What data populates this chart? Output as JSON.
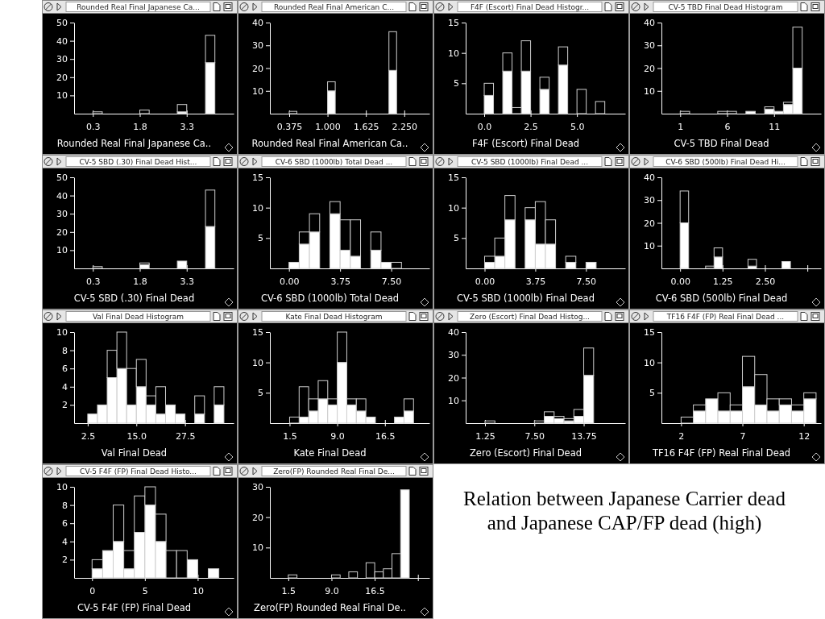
{
  "chart_data": [
    {
      "type": "bar",
      "stacked": true,
      "title": "Rounded Real Final Japanese Ca...",
      "xlabel": "Rounded Real Final Japanese Ca..",
      "x": [
        0.45,
        0.75,
        1.05,
        1.35,
        1.65,
        1.95,
        2.25,
        2.55,
        2.85,
        3.15,
        3.45,
        3.75,
        4.05
      ],
      "xlim": [
        -0.3,
        4.8
      ],
      "xticks": [
        0.3,
        1.8,
        3.3
      ],
      "ylim": [
        0,
        50
      ],
      "yticks": [
        10,
        20,
        30,
        40,
        50
      ],
      "series": [
        {
          "color": "#ffffff",
          "values": [
            0,
            0,
            0,
            0,
            0,
            0,
            0,
            0,
            0,
            1,
            0,
            0,
            28
          ]
        },
        {
          "color": "#000000",
          "values": [
            1,
            0,
            0,
            0,
            0,
            2,
            0,
            0,
            0,
            4,
            0,
            0,
            15
          ]
        }
      ]
    },
    {
      "type": "bar",
      "stacked": true,
      "title": "Rounded Real Final American C...",
      "xlabel": "Rounded Real Final American Ca..",
      "x": [
        0.4375,
        0.5625,
        0.6875,
        0.8125,
        0.9375,
        1.0625,
        1.1875,
        1.3125,
        1.4375,
        1.5625,
        1.6875,
        1.8125,
        1.9375,
        2.0625
      ],
      "xlim": [
        0.06,
        2.66
      ],
      "xticks": [
        0.375,
        {
          "value": 1,
          "label": "1.000"
        },
        1.625,
        {
          "value": 2.25,
          "label": "2.250"
        }
      ],
      "ylim": [
        0,
        40
      ],
      "yticks": [
        10,
        20,
        30,
        40
      ],
      "series": [
        {
          "color": "#ffffff",
          "values": [
            0,
            0,
            0,
            0,
            0,
            10,
            0,
            0,
            0,
            0,
            0,
            0,
            0,
            19
          ]
        },
        {
          "color": "#000000",
          "values": [
            1,
            0,
            0,
            0,
            0,
            4,
            0,
            0,
            0,
            0,
            0,
            0,
            0,
            17
          ]
        }
      ]
    },
    {
      "type": "bar",
      "stacked": true,
      "title": "F4F (Escort) Final Dead Histogr...",
      "xlabel": "F4F (Escort) Final Dead",
      "x": [
        0.25,
        0.75,
        1.25,
        1.75,
        2.25,
        2.75,
        3.25,
        3.75,
        4.25,
        4.75,
        5.25,
        5.75,
        6.25
      ],
      "xlim": [
        -1,
        7.6
      ],
      "xticks": [
        {
          "value": 0,
          "label": "0.0"
        },
        2.5,
        {
          "value": 5,
          "label": "5.0"
        }
      ],
      "ylim": [
        0,
        15
      ],
      "yticks": [
        5,
        10,
        15
      ],
      "series": [
        {
          "color": "#ffffff",
          "values": [
            3,
            0,
            7,
            0,
            7,
            0,
            4,
            0,
            8,
            0,
            0,
            0,
            0
          ]
        },
        {
          "color": "#000000",
          "values": [
            2,
            0,
            3,
            1,
            5,
            0,
            2,
            0,
            3,
            0,
            4,
            0,
            2
          ]
        }
      ]
    },
    {
      "type": "bar",
      "stacked": true,
      "title": "CV-5 TBD Final Dead Histogram",
      "xlabel": "CV-5 TBD Final Dead",
      "x": [
        1.5,
        2.5,
        3.5,
        4.5,
        5.5,
        6.5,
        7.5,
        8.5,
        9.5,
        10.5,
        11.5,
        12.5,
        13.5
      ],
      "xlim": [
        -1,
        16
      ],
      "xticks": [
        1,
        6,
        11
      ],
      "ylim": [
        0,
        40
      ],
      "yticks": [
        10,
        20,
        30,
        40
      ],
      "series": [
        {
          "color": "#ffffff",
          "values": [
            0,
            0,
            0,
            0,
            0,
            0,
            0,
            1,
            0,
            2,
            1,
            4,
            20
          ]
        },
        {
          "color": "#000000",
          "values": [
            1,
            0,
            0,
            0,
            1,
            1,
            0,
            0,
            0,
            1,
            0,
            1,
            18
          ]
        }
      ]
    },
    {
      "type": "bar",
      "stacked": true,
      "title": "CV-5 SBD (.30) Final Dead Hist...",
      "xlabel": "CV-5 SBD (.30) Final Dead",
      "x": [
        0.45,
        0.75,
        1.05,
        1.35,
        1.65,
        1.95,
        2.25,
        2.55,
        2.85,
        3.15,
        3.45,
        3.75,
        4.05
      ],
      "xlim": [
        -0.3,
        4.8
      ],
      "xticks": [
        0.3,
        1.8,
        3.3
      ],
      "ylim": [
        0,
        50
      ],
      "yticks": [
        10,
        20,
        30,
        40,
        50
      ],
      "series": [
        {
          "color": "#ffffff",
          "values": [
            0,
            0,
            0,
            0,
            0,
            2,
            0,
            0,
            0,
            4,
            0,
            0,
            23
          ]
        },
        {
          "color": "#000000",
          "values": [
            1,
            0,
            0,
            0,
            0,
            1,
            0,
            0,
            0,
            0,
            0,
            0,
            20
          ]
        }
      ]
    },
    {
      "type": "bar",
      "stacked": true,
      "title": "CV-6 SBD (1000lb) Total Dead ...",
      "xlabel": "CV-6 SBD (1000lb) Total Dead",
      "x": [
        0.375,
        1.125,
        1.875,
        2.625,
        3.375,
        4.125,
        4.875,
        5.625,
        6.375,
        7.125,
        7.875
      ],
      "xlim": [
        -1.4,
        10.3
      ],
      "xticks": [
        {
          "value": 0,
          "label": "0.00"
        },
        3.75,
        {
          "value": 7.5,
          "label": "7.50"
        }
      ],
      "ylim": [
        0,
        15
      ],
      "yticks": [
        5,
        10,
        15
      ],
      "series": [
        {
          "color": "#ffffff",
          "values": [
            1,
            4,
            6,
            0,
            9,
            3,
            2,
            0,
            3,
            1,
            0
          ]
        },
        {
          "color": "#000000",
          "values": [
            0,
            2,
            3,
            0,
            2,
            5,
            6,
            0,
            3,
            0,
            1
          ]
        }
      ]
    },
    {
      "type": "bar",
      "stacked": true,
      "title": "CV-5 SBD (1000lb) Final Dead ...",
      "xlabel": "CV-5 SBD (1000lb) Final Dead",
      "x": [
        0.375,
        1.125,
        1.875,
        2.625,
        3.375,
        4.125,
        4.875,
        5.625,
        6.375,
        7.125,
        7.875
      ],
      "xlim": [
        -1.4,
        10.4
      ],
      "xticks": [
        {
          "value": 0,
          "label": "0.00"
        },
        3.75,
        {
          "value": 7.5,
          "label": "7.50"
        }
      ],
      "ylim": [
        0,
        15
      ],
      "yticks": [
        5,
        10,
        15
      ],
      "series": [
        {
          "color": "#ffffff",
          "values": [
            1,
            2,
            8,
            0,
            8,
            4,
            4,
            0,
            1,
            0,
            1
          ]
        },
        {
          "color": "#000000",
          "values": [
            1,
            3,
            4,
            0,
            2,
            7,
            4,
            0,
            1,
            0,
            0
          ]
        }
      ]
    },
    {
      "type": "bar",
      "stacked": true,
      "title": "CV-6 SBD (500lb) Final Dead Hi...",
      "xlabel": "CV-6 SBD (500lb) Final Dead",
      "x": [
        0.125,
        0.375,
        0.625,
        0.875,
        1.125,
        1.375,
        1.625,
        1.875,
        2.125,
        2.375,
        2.625,
        2.875,
        3.125
      ],
      "xlim": [
        -0.55,
        4.15
      ],
      "xticks": [
        {
          "value": 0,
          "label": "0.00"
        },
        1.25,
        {
          "value": 2.5,
          "label": "2.50"
        },
        {
          "value": 3.75,
          "label": null
        }
      ],
      "ylim": [
        0,
        40
      ],
      "yticks": [
        10,
        20,
        30,
        40
      ],
      "series": [
        {
          "color": "#ffffff",
          "values": [
            20,
            0,
            0,
            0,
            5,
            0,
            0,
            0,
            1,
            0,
            0,
            0,
            3
          ]
        },
        {
          "color": "#000000",
          "values": [
            14,
            0,
            0,
            1,
            4,
            0,
            0,
            0,
            3,
            0,
            0,
            0,
            0
          ]
        }
      ]
    },
    {
      "type": "bar",
      "stacked": true,
      "title": "Val Final Dead Histogram",
      "xlabel": "Val Final Dead",
      "x": [
        3.75,
        6.25,
        8.75,
        11.25,
        13.75,
        16.25,
        18.75,
        21.25,
        23.75,
        26.25,
        28.75,
        31.25,
        33.75,
        36.25
      ],
      "xlim": [
        -1,
        40
      ],
      "xticks": [
        2.5,
        {
          "value": 15,
          "label": "15.0"
        },
        27.5
      ],
      "ylim": [
        0,
        10
      ],
      "yticks": [
        2,
        4,
        6,
        8,
        10
      ],
      "series": [
        {
          "color": "#ffffff",
          "values": [
            1,
            2,
            5,
            6,
            2,
            4,
            2,
            1,
            2,
            1,
            0,
            1,
            0,
            2
          ]
        },
        {
          "color": "#000000",
          "values": [
            0,
            0,
            3,
            4,
            4,
            3,
            1,
            3,
            0,
            0,
            0,
            2,
            0,
            2
          ]
        }
      ]
    },
    {
      "type": "bar",
      "stacked": true,
      "title": "Kate Final Dead Histogram",
      "xlabel": "Kate Final Dead",
      "x": [
        2.25,
        3.75,
        5.25,
        6.75,
        8.25,
        9.75,
        11.25,
        12.75,
        14.25,
        15.75,
        17.25,
        18.75,
        20.25
      ],
      "xlim": [
        -1.6,
        23.5
      ],
      "xticks": [
        1.5,
        {
          "value": 9,
          "label": "9.0"
        },
        16.5
      ],
      "ylim": [
        0,
        15
      ],
      "yticks": [
        5,
        10,
        15
      ],
      "series": [
        {
          "color": "#ffffff",
          "values": [
            0,
            1,
            2,
            4,
            3,
            10,
            3,
            2,
            1,
            0,
            0,
            1,
            2
          ]
        },
        {
          "color": "#000000",
          "values": [
            1,
            5,
            2,
            3,
            1,
            5,
            1,
            2,
            0,
            0,
            0,
            0,
            2
          ]
        }
      ]
    },
    {
      "type": "bar",
      "stacked": true,
      "title": "Zero (Escort) Final Dead Histog...",
      "xlabel": "Zero (Escort) Final Dead",
      "x": [
        1.875,
        3.125,
        4.375,
        5.625,
        6.875,
        8.125,
        9.375,
        10.625,
        11.875,
        13.125,
        14.375
      ],
      "xlim": [
        -1.2,
        19
      ],
      "xticks": [
        1.25,
        {
          "value": 7.5,
          "label": "7.50"
        },
        13.75
      ],
      "ylim": [
        0,
        40
      ],
      "yticks": [
        10,
        20,
        30,
        40
      ],
      "series": [
        {
          "color": "#ffffff",
          "values": [
            0,
            0,
            0,
            0,
            0,
            0,
            3,
            2,
            1,
            3,
            21
          ]
        },
        {
          "color": "#000000",
          "values": [
            1,
            0,
            0,
            0,
            0,
            1,
            2,
            1,
            1,
            3,
            12
          ]
        }
      ]
    },
    {
      "type": "bar",
      "stacked": true,
      "title": "TF16 F4F (FP) Real Final Dead ...",
      "xlabel": "TF16 F4F (FP) Real Final Dead",
      "x": [
        2.5,
        3.5,
        4.5,
        5.5,
        6.5,
        7.5,
        8.5,
        9.5,
        10.5,
        11.5,
        12.5
      ],
      "xlim": [
        0.4,
        13.4
      ],
      "xticks": [
        2,
        7,
        12
      ],
      "ylim": [
        0,
        15
      ],
      "yticks": [
        5,
        10,
        15
      ],
      "series": [
        {
          "color": "#ffffff",
          "values": [
            0,
            2,
            4,
            2,
            2,
            6,
            3,
            2,
            3,
            2,
            4
          ]
        },
        {
          "color": "#000000",
          "values": [
            1,
            1,
            0,
            3,
            1,
            5,
            5,
            2,
            1,
            1,
            1
          ]
        }
      ]
    },
    {
      "type": "bar",
      "stacked": true,
      "title": "CV-5 F4F (FP)  Final Dead Histo...",
      "xlabel": "CV-5 F4F (FP)  Final Dead",
      "x": [
        0.5,
        1.5,
        2.5,
        3.5,
        4.5,
        5.5,
        6.5,
        7.5,
        8.5,
        9.5,
        10.5,
        11.5
      ],
      "xlim": [
        -1.7,
        13.4
      ],
      "xticks": [
        0,
        5,
        10
      ],
      "ylim": [
        0,
        10
      ],
      "yticks": [
        2,
        4,
        6,
        8,
        10
      ],
      "series": [
        {
          "color": "#ffffff",
          "values": [
            1,
            3,
            4,
            1,
            5,
            8,
            4,
            0,
            0,
            2,
            0,
            1
          ]
        },
        {
          "color": "#000000",
          "values": [
            1,
            0,
            4,
            2,
            4,
            2,
            3,
            3,
            3,
            0,
            0,
            0
          ]
        }
      ]
    },
    {
      "type": "bar",
      "stacked": true,
      "title": "Zero(FP) Rounded Real Final De...",
      "xlabel": "Zero(FP) Rounded Real Final De..",
      "x": [
        2.25,
        3.75,
        5.25,
        6.75,
        8.25,
        9.75,
        11.25,
        12.75,
        14.25,
        15.75,
        17.25,
        18.75,
        20.25,
        21.75
      ],
      "xlim": [
        -1.7,
        26
      ],
      "xticks": [
        1.5,
        {
          "value": 9,
          "label": "9.0"
        },
        16.5,
        {
          "value": 24,
          "label": null
        }
      ],
      "ylim": [
        0,
        30
      ],
      "yticks": [
        10,
        20,
        30
      ],
      "series": [
        {
          "color": "#ffffff",
          "values": [
            0,
            0,
            0,
            0,
            0,
            0,
            0,
            0,
            0,
            0,
            0,
            0,
            0,
            29
          ]
        },
        {
          "color": "#000000",
          "values": [
            1,
            0,
            0,
            0,
            0,
            1,
            0,
            2,
            0,
            5,
            2,
            3,
            8,
            0
          ]
        }
      ]
    },
    {
      "type": "other",
      "title": "Relation between Japanese Carrier dead and Japanese CAP/FP dead (high)"
    }
  ]
}
